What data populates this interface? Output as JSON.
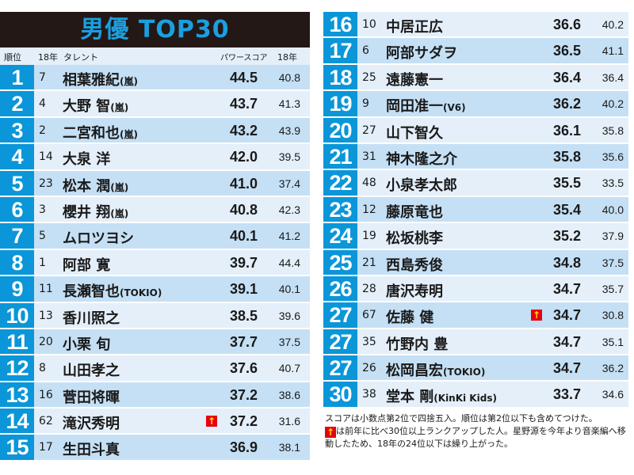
{
  "title": "男優 TOP30",
  "headers": {
    "rank": "順位",
    "prev_rank": "18年",
    "talent": "タレント",
    "score": "パワースコア",
    "prev_score": "18年"
  },
  "colors": {
    "rank_bg": "#0a96d8",
    "title_text": "#1a9fe0",
    "title_bg": "#231815",
    "row_odd": "#c5e0f5",
    "row_even": "#e4eff9",
    "arrow_bg": "#e60012",
    "arrow_fg": "#ffe600"
  },
  "rows": [
    {
      "rank": "1",
      "prev": "7",
      "name": "相葉雅紀",
      "group": "(嵐)",
      "score": "44.5",
      "last": "40.8",
      "up": false
    },
    {
      "rank": "2",
      "prev": "4",
      "name": "大野 智",
      "group": "(嵐)",
      "score": "43.7",
      "last": "41.3",
      "up": false
    },
    {
      "rank": "3",
      "prev": "2",
      "name": "二宮和也",
      "group": "(嵐)",
      "score": "43.2",
      "last": "43.9",
      "up": false
    },
    {
      "rank": "4",
      "prev": "14",
      "name": "大泉 洋",
      "group": "",
      "score": "42.0",
      "last": "39.5",
      "up": false
    },
    {
      "rank": "5",
      "prev": "23",
      "name": "松本 潤",
      "group": "(嵐)",
      "score": "41.0",
      "last": "37.4",
      "up": false
    },
    {
      "rank": "6",
      "prev": "3",
      "name": "櫻井 翔",
      "group": "(嵐)",
      "score": "40.8",
      "last": "42.3",
      "up": false
    },
    {
      "rank": "7",
      "prev": "5",
      "name": "ムロツヨシ",
      "group": "",
      "score": "40.1",
      "last": "41.2",
      "up": false
    },
    {
      "rank": "8",
      "prev": "1",
      "name": "阿部 寛",
      "group": "",
      "score": "39.7",
      "last": "44.4",
      "up": false
    },
    {
      "rank": "9",
      "prev": "11",
      "name": "長瀬智也",
      "group": "(TOKIO)",
      "score": "39.1",
      "last": "40.1",
      "up": false
    },
    {
      "rank": "10",
      "prev": "13",
      "name": "香川照之",
      "group": "",
      "score": "38.5",
      "last": "39.6",
      "up": false
    },
    {
      "rank": "11",
      "prev": "20",
      "name": "小栗 旬",
      "group": "",
      "score": "37.7",
      "last": "37.5",
      "up": false
    },
    {
      "rank": "12",
      "prev": "8",
      "name": "山田孝之",
      "group": "",
      "score": "37.6",
      "last": "40.7",
      "up": false
    },
    {
      "rank": "13",
      "prev": "16",
      "name": "菅田将暉",
      "group": "",
      "score": "37.2",
      "last": "38.6",
      "up": false
    },
    {
      "rank": "14",
      "prev": "62",
      "name": "滝沢秀明",
      "group": "",
      "score": "37.2",
      "last": "31.6",
      "up": true
    },
    {
      "rank": "15",
      "prev": "17",
      "name": "生田斗真",
      "group": "",
      "score": "36.9",
      "last": "38.1",
      "up": false
    },
    {
      "rank": "16",
      "prev": "10",
      "name": "中居正広",
      "group": "",
      "score": "36.6",
      "last": "40.2",
      "up": false
    },
    {
      "rank": "17",
      "prev": "6",
      "name": "阿部サダヲ",
      "group": "",
      "score": "36.5",
      "last": "41.1",
      "up": false
    },
    {
      "rank": "18",
      "prev": "25",
      "name": "遠藤憲一",
      "group": "",
      "score": "36.4",
      "last": "36.4",
      "up": false
    },
    {
      "rank": "19",
      "prev": "9",
      "name": "岡田准一",
      "group": "(V6)",
      "score": "36.2",
      "last": "40.2",
      "up": false
    },
    {
      "rank": "20",
      "prev": "27",
      "name": "山下智久",
      "group": "",
      "score": "36.1",
      "last": "35.8",
      "up": false
    },
    {
      "rank": "21",
      "prev": "31",
      "name": "神木隆之介",
      "group": "",
      "score": "35.8",
      "last": "35.6",
      "up": false
    },
    {
      "rank": "22",
      "prev": "48",
      "name": "小泉孝太郎",
      "group": "",
      "score": "35.5",
      "last": "33.5",
      "up": false
    },
    {
      "rank": "23",
      "prev": "12",
      "name": "藤原竜也",
      "group": "",
      "score": "35.4",
      "last": "40.0",
      "up": false
    },
    {
      "rank": "24",
      "prev": "19",
      "name": "松坂桃李",
      "group": "",
      "score": "35.2",
      "last": "37.9",
      "up": false
    },
    {
      "rank": "25",
      "prev": "21",
      "name": "西島秀俊",
      "group": "",
      "score": "34.8",
      "last": "37.5",
      "up": false
    },
    {
      "rank": "26",
      "prev": "28",
      "name": "唐沢寿明",
      "group": "",
      "score": "34.7",
      "last": "35.7",
      "up": false
    },
    {
      "rank": "27",
      "prev": "67",
      "name": "佐藤 健",
      "group": "",
      "score": "34.7",
      "last": "30.8",
      "up": true
    },
    {
      "rank": "27",
      "prev": "35",
      "name": "竹野内 豊",
      "group": "",
      "score": "34.7",
      "last": "35.1",
      "up": false
    },
    {
      "rank": "27",
      "prev": "26",
      "name": "松岡昌宏",
      "group": "(TOKIO)",
      "score": "34.7",
      "last": "36.2",
      "up": false
    },
    {
      "rank": "30",
      "prev": "38",
      "name": "堂本 剛",
      "group": "(KinKi Kids)",
      "score": "33.7",
      "last": "34.6",
      "up": false
    }
  ],
  "arrow_glyph": "↑",
  "notes": {
    "line1": "スコアは小数点第2位で四捨五入。順位は第2位以下も含めてつけた。",
    "line2": "は前年に比べ30位以上ランクアップした人。星野源を今年より音楽編へ移動したため、18年の24位以下は繰り上がった。"
  }
}
